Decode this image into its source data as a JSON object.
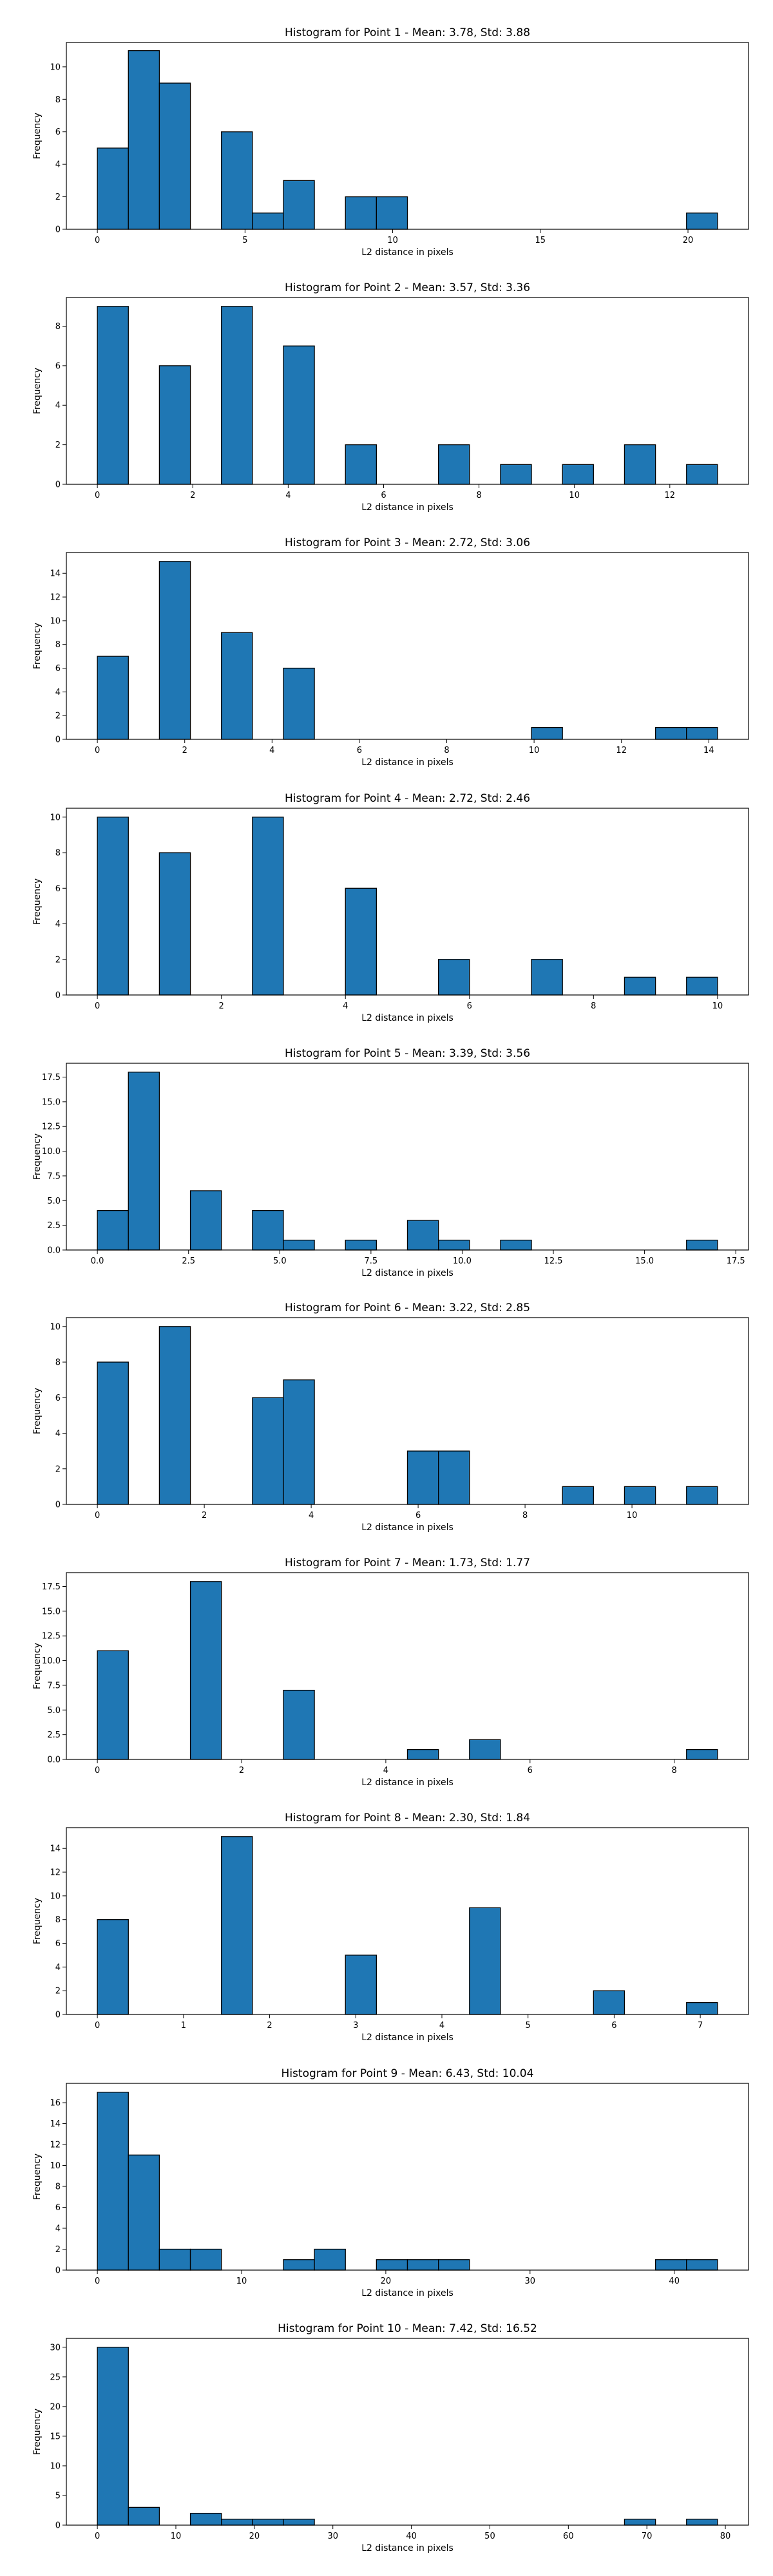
{
  "chart_data": [
    {
      "type": "bar",
      "title": "Histogram for Point 1 - Mean: 3.78, Std: 3.88",
      "xlabel": "L2 distance in pixels",
      "ylabel": "Frequency",
      "xlim": [
        -1.05,
        22.05
      ],
      "ylim": [
        0,
        11.5
      ],
      "xticks": [
        0,
        5,
        10,
        15,
        20
      ],
      "xtick_labels": [
        "0",
        "5",
        "10",
        "15",
        "20"
      ],
      "yticks": [
        0,
        2,
        4,
        6,
        8,
        10
      ],
      "ytick_labels": [
        "0",
        "2",
        "4",
        "6",
        "8",
        "10"
      ],
      "bin_width": 1.05,
      "bin_starts": [
        0,
        1.05,
        2.1,
        3.15,
        4.2,
        5.25,
        6.3,
        7.35,
        8.4,
        9.45,
        10.5,
        11.55,
        12.6,
        13.65,
        14.7,
        15.75,
        16.8,
        17.85,
        18.9,
        19.95
      ],
      "values": [
        5,
        11,
        9,
        0,
        6,
        1,
        3,
        0,
        2,
        2,
        0,
        0,
        0,
        0,
        0,
        0,
        0,
        0,
        0,
        1
      ],
      "grid": false,
      "legend": false
    },
    {
      "type": "bar",
      "title": "Histogram for Point 2 - Mean: 3.57, Std: 3.36",
      "xlabel": "L2 distance in pixels",
      "ylabel": "Frequency",
      "xlim": [
        -0.65,
        13.65
      ],
      "ylim": [
        0,
        9.45
      ],
      "xticks": [
        0,
        2,
        4,
        6,
        8,
        10,
        12
      ],
      "xtick_labels": [
        "0",
        "2",
        "4",
        "6",
        "8",
        "10",
        "12"
      ],
      "yticks": [
        0,
        2,
        4,
        6,
        8
      ],
      "ytick_labels": [
        "0",
        "2",
        "4",
        "6",
        "8"
      ],
      "bin_width": 0.65,
      "bin_starts": [
        0,
        0.65,
        1.3,
        1.95,
        2.6,
        3.25,
        3.9,
        4.55,
        5.2,
        5.85,
        6.5,
        7.15,
        7.8,
        8.45,
        9.1,
        9.75,
        10.4,
        11.05,
        11.7,
        12.35
      ],
      "values": [
        9,
        0,
        6,
        0,
        9,
        0,
        7,
        0,
        2,
        0,
        0,
        2,
        0,
        1,
        0,
        1,
        0,
        2,
        0,
        1
      ],
      "grid": false,
      "legend": false
    },
    {
      "type": "bar",
      "title": "Histogram for Point 3 - Mean: 2.72, Std: 3.06",
      "xlabel": "L2 distance in pixels",
      "ylabel": "Frequency",
      "xlim": [
        -0.71,
        14.91
      ],
      "ylim": [
        0,
        15.75
      ],
      "xticks": [
        0,
        2,
        4,
        6,
        8,
        10,
        12,
        14
      ],
      "xtick_labels": [
        "0",
        "2",
        "4",
        "6",
        "8",
        "10",
        "12",
        "14"
      ],
      "yticks": [
        0,
        2,
        4,
        6,
        8,
        10,
        12,
        14
      ],
      "ytick_labels": [
        "0",
        "2",
        "4",
        "6",
        "8",
        "10",
        "12",
        "14"
      ],
      "bin_width": 0.71,
      "bin_starts": [
        0,
        0.71,
        1.42,
        2.13,
        2.84,
        3.55,
        4.26,
        4.97,
        5.68,
        6.39,
        7.1,
        7.81,
        8.52,
        9.23,
        9.94,
        10.65,
        11.36,
        12.07,
        12.78,
        13.49
      ],
      "values": [
        7,
        0,
        15,
        0,
        9,
        0,
        6,
        0,
        0,
        0,
        0,
        0,
        0,
        0,
        1,
        0,
        0,
        0,
        1,
        1
      ],
      "grid": false,
      "legend": false
    },
    {
      "type": "bar",
      "title": "Histogram for Point 4 - Mean: 2.72, Std: 2.46",
      "xlabel": "L2 distance in pixels",
      "ylabel": "Frequency",
      "xlim": [
        -0.5,
        10.5
      ],
      "ylim": [
        0,
        10.5
      ],
      "xticks": [
        0,
        2,
        4,
        6,
        8,
        10
      ],
      "xtick_labels": [
        "0",
        "2",
        "4",
        "6",
        "8",
        "10"
      ],
      "yticks": [
        0,
        2,
        4,
        6,
        8,
        10
      ],
      "ytick_labels": [
        "0",
        "2",
        "4",
        "6",
        "8",
        "10"
      ],
      "bin_width": 0.5,
      "bin_starts": [
        0,
        0.5,
        1,
        1.5,
        2,
        2.5,
        3,
        3.5,
        4,
        4.5,
        5,
        5.5,
        6,
        6.5,
        7,
        7.5,
        8,
        8.5,
        9,
        9.5
      ],
      "values": [
        10,
        0,
        8,
        0,
        0,
        10,
        0,
        0,
        6,
        0,
        0,
        2,
        0,
        0,
        2,
        0,
        0,
        1,
        0,
        1
      ],
      "grid": false,
      "legend": false
    },
    {
      "type": "bar",
      "title": "Histogram for Point 5 - Mean: 3.39, Std: 3.56",
      "xlabel": "L2 distance in pixels",
      "ylabel": "Frequency",
      "xlim": [
        -0.85,
        17.85
      ],
      "ylim": [
        0,
        18.9
      ],
      "xticks": [
        0,
        2.5,
        5,
        7.5,
        10,
        12.5,
        15,
        17.5
      ],
      "xtick_labels": [
        "0.0",
        "2.5",
        "5.0",
        "7.5",
        "10.0",
        "12.5",
        "15.0",
        "17.5"
      ],
      "yticks": [
        0,
        2.5,
        5,
        7.5,
        10,
        12.5,
        15,
        17.5
      ],
      "ytick_labels": [
        "0.0",
        "2.5",
        "5.0",
        "7.5",
        "10.0",
        "12.5",
        "15.0",
        "17.5"
      ],
      "bin_width": 0.85,
      "bin_starts": [
        0,
        0.85,
        1.7,
        2.55,
        3.4,
        4.25,
        5.1,
        5.95,
        6.8,
        7.65,
        8.5,
        9.35,
        10.2,
        11.05,
        11.9,
        12.75,
        13.6,
        14.45,
        15.3,
        16.15
      ],
      "values": [
        4,
        18,
        0,
        6,
        0,
        4,
        1,
        0,
        1,
        0,
        3,
        1,
        0,
        1,
        0,
        0,
        0,
        0,
        0,
        1
      ],
      "grid": false,
      "legend": false
    },
    {
      "type": "bar",
      "title": "Histogram for Point 6 - Mean: 3.22, Std: 2.85",
      "xlabel": "L2 distance in pixels",
      "ylabel": "Frequency",
      "xlim": [
        -0.58,
        12.18
      ],
      "ylim": [
        0,
        10.5
      ],
      "xticks": [
        0,
        2,
        4,
        6,
        8,
        10
      ],
      "xtick_labels": [
        "0",
        "2",
        "4",
        "6",
        "8",
        "10"
      ],
      "yticks": [
        0,
        2,
        4,
        6,
        8,
        10
      ],
      "ytick_labels": [
        "0",
        "2",
        "4",
        "6",
        "8",
        "10"
      ],
      "bin_width": 0.58,
      "bin_starts": [
        0,
        0.58,
        1.16,
        1.74,
        2.32,
        2.9,
        3.48,
        4.06,
        4.64,
        5.22,
        5.8,
        6.38,
        6.96,
        7.54,
        8.12,
        8.7,
        9.28,
        9.86,
        10.44,
        11.02
      ],
      "values": [
        8,
        0,
        10,
        0,
        0,
        6,
        7,
        0,
        0,
        0,
        3,
        3,
        0,
        0,
        0,
        1,
        0,
        1,
        0,
        1
      ],
      "grid": false,
      "legend": false
    },
    {
      "type": "bar",
      "title": "Histogram for Point 7 - Mean: 1.73, Std: 1.77",
      "xlabel": "L2 distance in pixels",
      "ylabel": "Frequency",
      "xlim": [
        -0.43,
        9.03
      ],
      "ylim": [
        0,
        18.9
      ],
      "xticks": [
        0,
        2,
        4,
        6,
        8
      ],
      "xtick_labels": [
        "0",
        "2",
        "4",
        "6",
        "8"
      ],
      "yticks": [
        0,
        2.5,
        5,
        7.5,
        10,
        12.5,
        15,
        17.5
      ],
      "ytick_labels": [
        "0.0",
        "2.5",
        "5.0",
        "7.5",
        "10.0",
        "12.5",
        "15.0",
        "17.5"
      ],
      "bin_width": 0.43,
      "bin_starts": [
        0,
        0.43,
        0.86,
        1.29,
        1.72,
        2.15,
        2.58,
        3.01,
        3.44,
        3.87,
        4.3,
        4.73,
        5.16,
        5.59,
        6.02,
        6.45,
        6.88,
        7.31,
        7.74,
        8.17
      ],
      "values": [
        11,
        0,
        0,
        18,
        0,
        0,
        7,
        0,
        0,
        0,
        1,
        0,
        2,
        0,
        0,
        0,
        0,
        0,
        0,
        1
      ],
      "grid": false,
      "legend": false
    },
    {
      "type": "bar",
      "title": "Histogram for Point 8 - Mean: 2.30, Std: 1.84",
      "xlabel": "L2 distance in pixels",
      "ylabel": "Frequency",
      "xlim": [
        -0.36,
        7.56
      ],
      "ylim": [
        0,
        15.75
      ],
      "xticks": [
        0,
        1,
        2,
        3,
        4,
        5,
        6,
        7
      ],
      "xtick_labels": [
        "0",
        "1",
        "2",
        "3",
        "4",
        "5",
        "6",
        "7"
      ],
      "yticks": [
        0,
        2,
        4,
        6,
        8,
        10,
        12,
        14
      ],
      "ytick_labels": [
        "0",
        "2",
        "4",
        "6",
        "8",
        "10",
        "12",
        "14"
      ],
      "bin_width": 0.36,
      "bin_starts": [
        0,
        0.36,
        0.72,
        1.08,
        1.44,
        1.8,
        2.16,
        2.52,
        2.88,
        3.24,
        3.6,
        3.96,
        4.32,
        4.68,
        5.04,
        5.4,
        5.76,
        6.12,
        6.48,
        6.84
      ],
      "values": [
        8,
        0,
        0,
        0,
        15,
        0,
        0,
        0,
        5,
        0,
        0,
        0,
        9,
        0,
        0,
        0,
        2,
        0,
        0,
        1
      ],
      "grid": false,
      "legend": false
    },
    {
      "type": "bar",
      "title": "Histogram for Point 9 - Mean: 6.43, Std: 10.04",
      "xlabel": "L2 distance in pixels",
      "ylabel": "Frequency",
      "xlim": [
        -2.15,
        45.15
      ],
      "ylim": [
        0,
        17.85
      ],
      "xticks": [
        0,
        10,
        20,
        30,
        40
      ],
      "xtick_labels": [
        "0",
        "10",
        "20",
        "30",
        "40"
      ],
      "yticks": [
        0,
        2,
        4,
        6,
        8,
        10,
        12,
        14,
        16
      ],
      "ytick_labels": [
        "0",
        "2",
        "4",
        "6",
        "8",
        "10",
        "12",
        "14",
        "16"
      ],
      "bin_width": 2.15,
      "bin_starts": [
        0,
        2.15,
        4.3,
        6.45,
        8.6,
        10.75,
        12.9,
        15.05,
        17.2,
        19.35,
        21.5,
        23.65,
        25.8,
        27.95,
        30.1,
        32.25,
        34.4,
        36.55,
        38.7,
        40.85
      ],
      "values": [
        17,
        11,
        2,
        2,
        0,
        0,
        1,
        2,
        0,
        1,
        1,
        1,
        0,
        0,
        0,
        0,
        0,
        0,
        1,
        1
      ],
      "grid": false,
      "legend": false
    },
    {
      "type": "bar",
      "title": "Histogram for Point 10 - Mean: 7.42, Std: 16.52",
      "xlabel": "L2 distance in pixels",
      "ylabel": "Frequency",
      "xlim": [
        -3.95,
        82.95
      ],
      "ylim": [
        0,
        31.5
      ],
      "xticks": [
        0,
        10,
        20,
        30,
        40,
        50,
        60,
        70,
        80
      ],
      "xtick_labels": [
        "0",
        "10",
        "20",
        "30",
        "40",
        "50",
        "60",
        "70",
        "80"
      ],
      "yticks": [
        0,
        5,
        10,
        15,
        20,
        25,
        30
      ],
      "ytick_labels": [
        "0",
        "5",
        "10",
        "15",
        "20",
        "25",
        "30"
      ],
      "bin_width": 3.95,
      "bin_starts": [
        0,
        3.95,
        7.9,
        11.85,
        15.8,
        19.75,
        23.7,
        27.65,
        31.6,
        35.55,
        39.5,
        43.45,
        47.4,
        51.35,
        55.3,
        59.25,
        63.2,
        67.15,
        71.1,
        75.05
      ],
      "values": [
        30,
        3,
        0,
        2,
        1,
        1,
        1,
        0,
        0,
        0,
        0,
        0,
        0,
        0,
        0,
        0,
        0,
        1,
        0,
        1
      ],
      "grid": false,
      "legend": false
    }
  ]
}
